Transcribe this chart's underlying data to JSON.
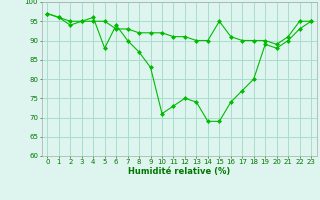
{
  "line1_x": [
    0,
    1,
    2,
    3,
    4,
    5,
    6,
    7,
    8,
    9,
    10,
    11,
    12,
    13,
    14,
    15,
    16,
    17,
    18,
    19,
    20,
    21,
    22,
    23
  ],
  "line1_y": [
    97,
    96,
    94,
    95,
    96,
    88,
    94,
    90,
    87,
    83,
    71,
    73,
    75,
    74,
    69,
    69,
    74,
    77,
    80,
    89,
    88,
    90,
    93,
    95
  ],
  "line2_x": [
    0,
    1,
    2,
    3,
    4,
    5,
    6,
    7,
    8,
    9,
    10,
    11,
    12,
    13,
    14,
    15,
    16,
    17,
    18,
    19,
    20,
    21,
    22,
    23
  ],
  "line2_y": [
    97,
    96,
    95,
    95,
    95,
    95,
    93,
    93,
    92,
    92,
    92,
    91,
    91,
    90,
    90,
    95,
    91,
    90,
    90,
    90,
    89,
    91,
    95,
    95
  ],
  "line_color": "#00bb00",
  "marker": "D",
  "markersize": 2.0,
  "linewidth": 0.8,
  "xlabel": "Humidité relative (%)",
  "xlabel_fontsize": 6,
  "xlabel_color": "#007700",
  "ylim": [
    60,
    100
  ],
  "xlim": [
    -0.5,
    23.5
  ],
  "yticks": [
    60,
    65,
    70,
    75,
    80,
    85,
    90,
    95,
    100
  ],
  "xticks": [
    0,
    1,
    2,
    3,
    4,
    5,
    6,
    7,
    8,
    9,
    10,
    11,
    12,
    13,
    14,
    15,
    16,
    17,
    18,
    19,
    20,
    21,
    22,
    23
  ],
  "grid_color": "#aaddcc",
  "background_color": "#ddf5ee",
  "tick_fontsize": 5.0,
  "tick_color": "#007700"
}
